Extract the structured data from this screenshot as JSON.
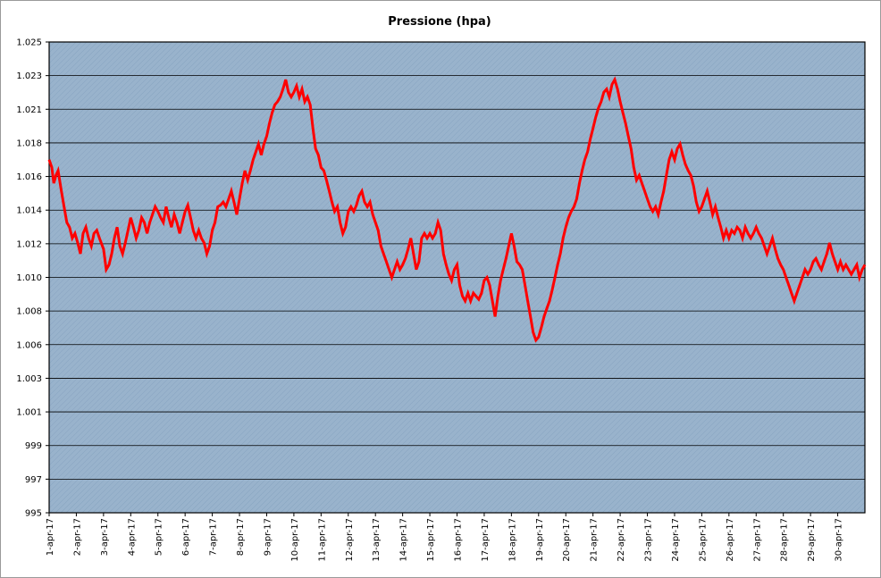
{
  "chart_data": {
    "type": "line",
    "title": "Pressione (hpa)",
    "xlabel": "",
    "ylabel": "",
    "ylim": [
      995,
      1025
    ],
    "y_ticks": [
      "995",
      "997",
      "999",
      "1.001",
      "1.003",
      "1.006",
      "1.008",
      "1.010",
      "1.012",
      "1.014",
      "1.016",
      "1.018",
      "1.021",
      "1.023",
      "1.025"
    ],
    "categories": [
      "1-apr-17",
      "2-apr-17",
      "3-apr-17",
      "4-apr-17",
      "5-apr-17",
      "6-apr-17",
      "7-apr-17",
      "8-apr-17",
      "9-apr-17",
      "10-apr-17",
      "11-apr-17",
      "12-apr-17",
      "13-apr-17",
      "14-apr-17",
      "15-apr-17",
      "16-apr-17",
      "17-apr-17",
      "18-apr-17",
      "19-apr-17",
      "20-apr-17",
      "21-apr-17",
      "22-apr-17",
      "23-apr-17",
      "24-apr-17",
      "25-apr-17",
      "26-apr-17",
      "27-apr-17",
      "28-apr-17",
      "29-apr-17",
      "30-apr-17"
    ],
    "x_range": [
      0,
      30
    ],
    "grid": true,
    "background": "#99b3cc",
    "series": [
      {
        "color": "#ff0000",
        "points": [
          [
            0.0,
            1017.5
          ],
          [
            0.1,
            1017.0
          ],
          [
            0.17,
            1016.0
          ],
          [
            0.25,
            1016.5
          ],
          [
            0.33,
            1016.8
          ],
          [
            0.45,
            1015.5
          ],
          [
            0.55,
            1014.5
          ],
          [
            0.65,
            1013.5
          ],
          [
            0.75,
            1013.2
          ],
          [
            0.85,
            1012.5
          ],
          [
            0.95,
            1012.8
          ],
          [
            1.05,
            1012.2
          ],
          [
            1.15,
            1011.5
          ],
          [
            1.25,
            1012.8
          ],
          [
            1.35,
            1013.2
          ],
          [
            1.45,
            1012.5
          ],
          [
            1.55,
            1012.0
          ],
          [
            1.65,
            1012.8
          ],
          [
            1.75,
            1013.0
          ],
          [
            1.85,
            1012.5
          ],
          [
            2.0,
            1011.8
          ],
          [
            2.1,
            1010.5
          ],
          [
            2.2,
            1010.8
          ],
          [
            2.3,
            1011.5
          ],
          [
            2.4,
            1012.5
          ],
          [
            2.5,
            1013.2
          ],
          [
            2.6,
            1012.0
          ],
          [
            2.7,
            1011.5
          ],
          [
            2.8,
            1012.2
          ],
          [
            2.9,
            1013.0
          ],
          [
            3.0,
            1013.8
          ],
          [
            3.1,
            1013.2
          ],
          [
            3.2,
            1012.5
          ],
          [
            3.3,
            1013.0
          ],
          [
            3.4,
            1013.8
          ],
          [
            3.5,
            1013.5
          ],
          [
            3.6,
            1012.8
          ],
          [
            3.7,
            1013.5
          ],
          [
            3.8,
            1014.0
          ],
          [
            3.9,
            1014.5
          ],
          [
            4.0,
            1014.2
          ],
          [
            4.1,
            1013.8
          ],
          [
            4.2,
            1013.5
          ],
          [
            4.3,
            1014.5
          ],
          [
            4.4,
            1013.8
          ],
          [
            4.5,
            1013.2
          ],
          [
            4.6,
            1014.0
          ],
          [
            4.7,
            1013.5
          ],
          [
            4.8,
            1012.8
          ],
          [
            4.9,
            1013.5
          ],
          [
            5.0,
            1014.2
          ],
          [
            5.1,
            1014.6
          ],
          [
            5.2,
            1013.8
          ],
          [
            5.3,
            1013.0
          ],
          [
            5.4,
            1012.5
          ],
          [
            5.5,
            1013.0
          ],
          [
            5.6,
            1012.5
          ],
          [
            5.7,
            1012.2
          ],
          [
            5.8,
            1011.5
          ],
          [
            5.9,
            1012.0
          ],
          [
            6.0,
            1013.0
          ],
          [
            6.1,
            1013.5
          ],
          [
            6.2,
            1014.5
          ],
          [
            6.3,
            1014.6
          ],
          [
            6.4,
            1014.8
          ],
          [
            6.5,
            1014.5
          ],
          [
            6.6,
            1015.0
          ],
          [
            6.7,
            1015.5
          ],
          [
            6.8,
            1014.8
          ],
          [
            6.9,
            1014.0
          ],
          [
            7.0,
            1015.0
          ],
          [
            7.1,
            1016.0
          ],
          [
            7.2,
            1016.8
          ],
          [
            7.3,
            1016.2
          ],
          [
            7.4,
            1016.8
          ],
          [
            7.5,
            1017.5
          ],
          [
            7.6,
            1018.0
          ],
          [
            7.7,
            1018.5
          ],
          [
            7.8,
            1017.8
          ],
          [
            7.9,
            1018.5
          ],
          [
            8.0,
            1019.0
          ],
          [
            8.1,
            1019.8
          ],
          [
            8.2,
            1020.5
          ],
          [
            8.3,
            1021.0
          ],
          [
            8.4,
            1021.2
          ],
          [
            8.5,
            1021.5
          ],
          [
            8.6,
            1022.0
          ],
          [
            8.7,
            1022.6
          ],
          [
            8.8,
            1021.8
          ],
          [
            8.9,
            1021.5
          ],
          [
            9.0,
            1021.8
          ],
          [
            9.1,
            1022.2
          ],
          [
            9.2,
            1021.5
          ],
          [
            9.3,
            1022.0
          ],
          [
            9.4,
            1021.2
          ],
          [
            9.5,
            1021.5
          ],
          [
            9.6,
            1021.0
          ],
          [
            9.7,
            1019.5
          ],
          [
            9.8,
            1018.2
          ],
          [
            9.9,
            1017.8
          ],
          [
            10.0,
            1017.0
          ],
          [
            10.1,
            1016.8
          ],
          [
            10.2,
            1016.2
          ],
          [
            10.3,
            1015.5
          ],
          [
            10.4,
            1014.8
          ],
          [
            10.5,
            1014.2
          ],
          [
            10.6,
            1014.5
          ],
          [
            10.7,
            1013.5
          ],
          [
            10.8,
            1012.8
          ],
          [
            10.9,
            1013.2
          ],
          [
            11.0,
            1014.2
          ],
          [
            11.1,
            1014.5
          ],
          [
            11.2,
            1014.2
          ],
          [
            11.3,
            1014.6
          ],
          [
            11.4,
            1015.2
          ],
          [
            11.5,
            1015.5
          ],
          [
            11.6,
            1014.8
          ],
          [
            11.7,
            1014.5
          ],
          [
            11.8,
            1014.8
          ],
          [
            11.9,
            1014.0
          ],
          [
            12.0,
            1013.5
          ],
          [
            12.1,
            1013.0
          ],
          [
            12.2,
            1012.0
          ],
          [
            12.3,
            1011.5
          ],
          [
            12.4,
            1011.0
          ],
          [
            12.5,
            1010.5
          ],
          [
            12.6,
            1010.0
          ],
          [
            12.7,
            1010.5
          ],
          [
            12.8,
            1011.0
          ],
          [
            12.9,
            1010.5
          ],
          [
            13.0,
            1010.8
          ],
          [
            13.1,
            1011.2
          ],
          [
            13.2,
            1011.8
          ],
          [
            13.3,
            1012.5
          ],
          [
            13.4,
            1011.5
          ],
          [
            13.5,
            1010.5
          ],
          [
            13.6,
            1011.0
          ],
          [
            13.7,
            1012.5
          ],
          [
            13.8,
            1012.8
          ],
          [
            13.9,
            1012.5
          ],
          [
            14.0,
            1012.8
          ],
          [
            14.1,
            1012.5
          ],
          [
            14.2,
            1012.8
          ],
          [
            14.3,
            1013.5
          ],
          [
            14.4,
            1013.0
          ],
          [
            14.5,
            1011.5
          ],
          [
            14.6,
            1010.8
          ],
          [
            14.7,
            1010.2
          ],
          [
            14.8,
            1009.8
          ],
          [
            14.9,
            1010.5
          ],
          [
            15.0,
            1010.8
          ],
          [
            15.1,
            1009.5
          ],
          [
            15.2,
            1008.8
          ],
          [
            15.3,
            1008.5
          ],
          [
            15.4,
            1009.0
          ],
          [
            15.5,
            1008.5
          ],
          [
            15.6,
            1009.0
          ],
          [
            15.7,
            1008.8
          ],
          [
            15.8,
            1008.6
          ],
          [
            15.9,
            1009.0
          ],
          [
            16.0,
            1009.8
          ],
          [
            16.1,
            1010.0
          ],
          [
            16.2,
            1009.5
          ],
          [
            16.3,
            1008.5
          ],
          [
            16.4,
            1007.5
          ],
          [
            16.5,
            1008.8
          ],
          [
            16.6,
            1009.8
          ],
          [
            16.7,
            1010.5
          ],
          [
            16.8,
            1011.2
          ],
          [
            16.9,
            1012.0
          ],
          [
            17.0,
            1012.8
          ],
          [
            17.1,
            1012.0
          ],
          [
            17.2,
            1011.0
          ],
          [
            17.3,
            1010.8
          ],
          [
            17.4,
            1010.5
          ],
          [
            17.5,
            1009.5
          ],
          [
            17.6,
            1008.5
          ],
          [
            17.7,
            1007.5
          ],
          [
            17.8,
            1006.5
          ],
          [
            17.9,
            1006.0
          ],
          [
            18.0,
            1006.2
          ],
          [
            18.1,
            1006.8
          ],
          [
            18.2,
            1007.5
          ],
          [
            18.3,
            1008.0
          ],
          [
            18.4,
            1008.5
          ],
          [
            18.5,
            1009.2
          ],
          [
            18.6,
            1010.0
          ],
          [
            18.7,
            1010.8
          ],
          [
            18.8,
            1011.5
          ],
          [
            18.9,
            1012.5
          ],
          [
            19.0,
            1013.2
          ],
          [
            19.1,
            1013.8
          ],
          [
            19.2,
            1014.2
          ],
          [
            19.3,
            1014.5
          ],
          [
            19.4,
            1015.0
          ],
          [
            19.5,
            1016.0
          ],
          [
            19.6,
            1016.8
          ],
          [
            19.7,
            1017.5
          ],
          [
            19.8,
            1018.0
          ],
          [
            19.9,
            1018.8
          ],
          [
            20.0,
            1019.5
          ],
          [
            20.1,
            1020.2
          ],
          [
            20.2,
            1020.8
          ],
          [
            20.3,
            1021.2
          ],
          [
            20.4,
            1021.8
          ],
          [
            20.5,
            1022.0
          ],
          [
            20.6,
            1021.5
          ],
          [
            20.7,
            1022.3
          ],
          [
            20.8,
            1022.6
          ],
          [
            20.9,
            1022.0
          ],
          [
            21.0,
            1021.2
          ],
          [
            21.1,
            1020.5
          ],
          [
            21.2,
            1019.8
          ],
          [
            21.3,
            1019.0
          ],
          [
            21.4,
            1018.2
          ],
          [
            21.5,
            1017.0
          ],
          [
            21.6,
            1016.2
          ],
          [
            21.7,
            1016.5
          ],
          [
            21.8,
            1016.0
          ],
          [
            21.9,
            1015.5
          ],
          [
            22.0,
            1015.0
          ],
          [
            22.1,
            1014.5
          ],
          [
            22.2,
            1014.2
          ],
          [
            22.3,
            1014.5
          ],
          [
            22.4,
            1014.0
          ],
          [
            22.5,
            1014.8
          ],
          [
            22.6,
            1015.5
          ],
          [
            22.7,
            1016.5
          ],
          [
            22.8,
            1017.5
          ],
          [
            22.9,
            1018.0
          ],
          [
            23.0,
            1017.5
          ],
          [
            23.1,
            1018.2
          ],
          [
            23.2,
            1018.5
          ],
          [
            23.3,
            1017.8
          ],
          [
            23.4,
            1017.2
          ],
          [
            23.5,
            1016.8
          ],
          [
            23.6,
            1016.5
          ],
          [
            23.7,
            1015.8
          ],
          [
            23.8,
            1014.8
          ],
          [
            23.9,
            1014.2
          ],
          [
            24.0,
            1014.5
          ],
          [
            24.1,
            1015.0
          ],
          [
            24.2,
            1015.5
          ],
          [
            24.3,
            1014.8
          ],
          [
            24.4,
            1014.0
          ],
          [
            24.5,
            1014.5
          ],
          [
            24.6,
            1013.8
          ],
          [
            24.7,
            1013.2
          ],
          [
            24.8,
            1012.5
          ],
          [
            24.9,
            1013.0
          ],
          [
            25.0,
            1012.5
          ],
          [
            25.1,
            1013.0
          ],
          [
            25.2,
            1012.8
          ],
          [
            25.3,
            1013.2
          ],
          [
            25.4,
            1013.0
          ],
          [
            25.5,
            1012.5
          ],
          [
            25.6,
            1013.2
          ],
          [
            25.7,
            1012.8
          ],
          [
            25.8,
            1012.5
          ],
          [
            25.9,
            1012.8
          ],
          [
            26.0,
            1013.2
          ],
          [
            26.1,
            1012.8
          ],
          [
            26.2,
            1012.5
          ],
          [
            26.3,
            1012.0
          ],
          [
            26.4,
            1011.5
          ],
          [
            26.5,
            1012.0
          ],
          [
            26.6,
            1012.5
          ],
          [
            26.7,
            1011.8
          ],
          [
            26.8,
            1011.2
          ],
          [
            26.9,
            1010.8
          ],
          [
            27.0,
            1010.5
          ],
          [
            27.1,
            1010.0
          ],
          [
            27.2,
            1009.5
          ],
          [
            27.3,
            1009.0
          ],
          [
            27.4,
            1008.5
          ],
          [
            27.5,
            1009.0
          ],
          [
            27.6,
            1009.5
          ],
          [
            27.7,
            1010.0
          ],
          [
            27.8,
            1010.5
          ],
          [
            27.9,
            1010.2
          ],
          [
            28.0,
            1010.5
          ],
          [
            28.1,
            1011.0
          ],
          [
            28.2,
            1011.2
          ],
          [
            28.3,
            1010.8
          ],
          [
            28.4,
            1010.5
          ],
          [
            28.5,
            1011.0
          ],
          [
            28.6,
            1011.5
          ],
          [
            28.7,
            1012.2
          ],
          [
            28.8,
            1011.5
          ],
          [
            28.9,
            1011.0
          ],
          [
            29.0,
            1010.5
          ],
          [
            29.1,
            1011.0
          ],
          [
            29.2,
            1010.5
          ],
          [
            29.3,
            1010.8
          ],
          [
            29.4,
            1010.5
          ],
          [
            29.5,
            1010.2
          ],
          [
            29.6,
            1010.5
          ],
          [
            29.7,
            1010.8
          ],
          [
            29.8,
            1010.0
          ],
          [
            29.9,
            1010.5
          ],
          [
            30.0,
            1010.8
          ]
        ]
      }
    ]
  }
}
